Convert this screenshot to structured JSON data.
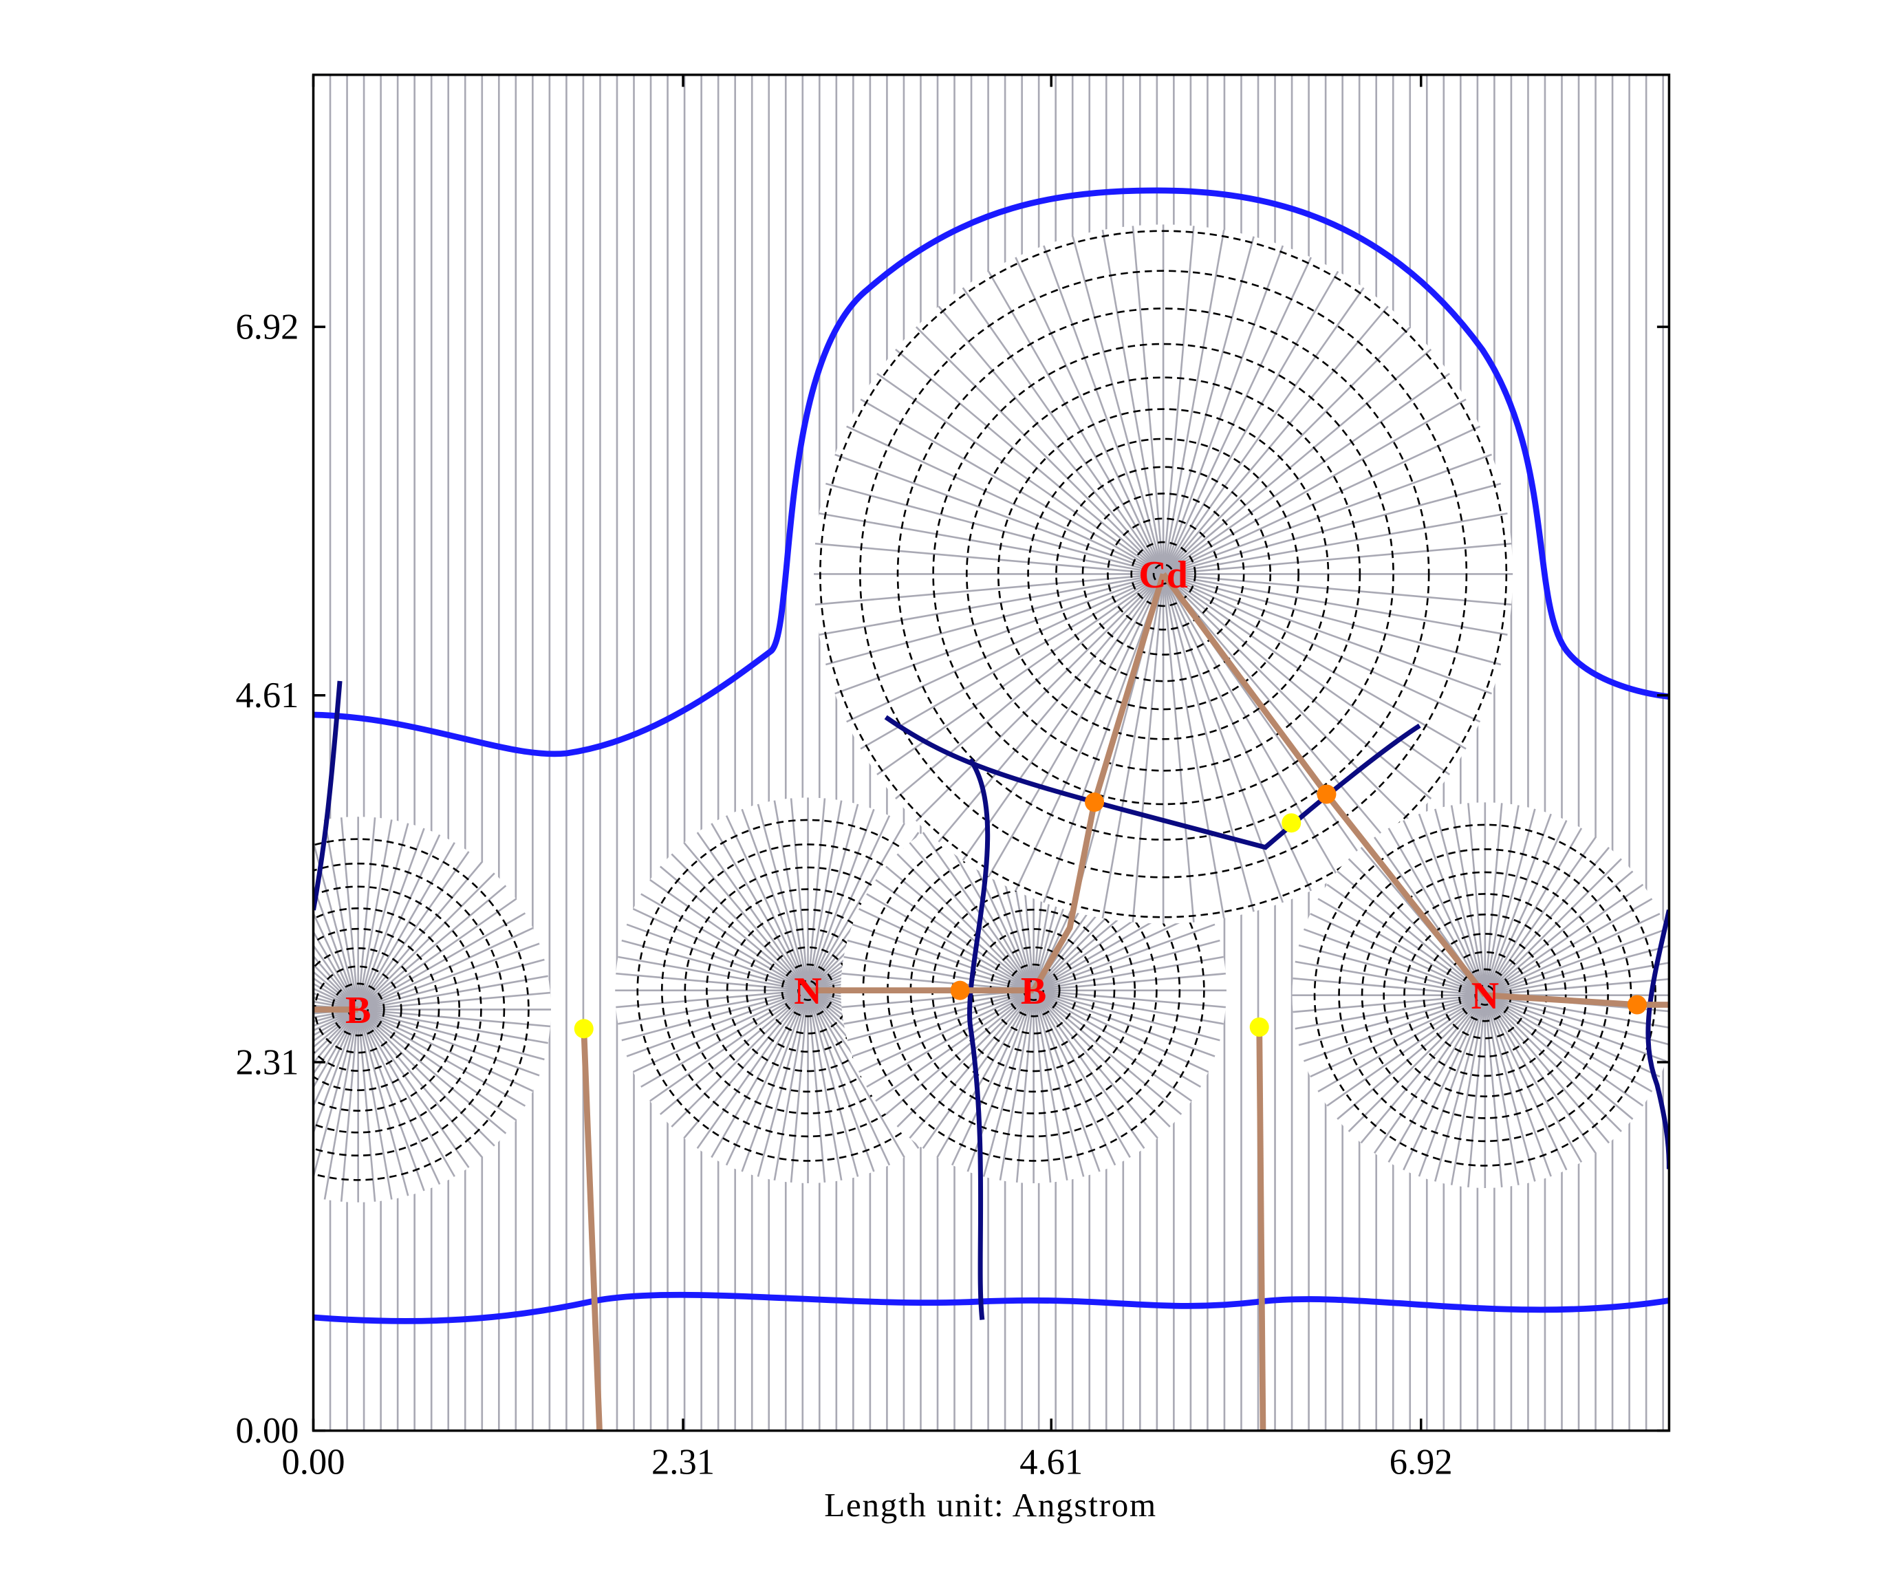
{
  "chart_data": {
    "type": "contour",
    "xlabel": "Length unit: Angstrom",
    "xlim": [
      0,
      8.47
    ],
    "ylim": [
      0,
      8.5
    ],
    "xticks": [
      {
        "value": 0,
        "label": "0.00"
      },
      2.31,
      4.61,
      6.92
    ],
    "yticks": [
      {
        "value": 0,
        "label": "0.00"
      },
      2.31,
      4.61,
      6.92
    ],
    "atoms": {
      "labels": [
        "B",
        "N",
        "B",
        "Cd",
        "N"
      ],
      "x": [
        0.28,
        3.09,
        4.5,
        5.31,
        7.32
      ],
      "y": [
        2.64,
        2.76,
        2.76,
        5.37,
        2.73
      ],
      "color": "#ff0000"
    },
    "bond_critical_points": {
      "x": [
        4.04,
        4.88,
        6.33,
        8.27
      ],
      "y": [
        2.76,
        3.94,
        3.99,
        2.67
      ],
      "color": "#ff7f00"
    },
    "ring_critical_points": {
      "x": [
        1.69,
        5.91,
        6.11
      ],
      "y": [
        2.52,
        2.53,
        3.81
      ],
      "color": "#ffff00"
    }
  }
}
